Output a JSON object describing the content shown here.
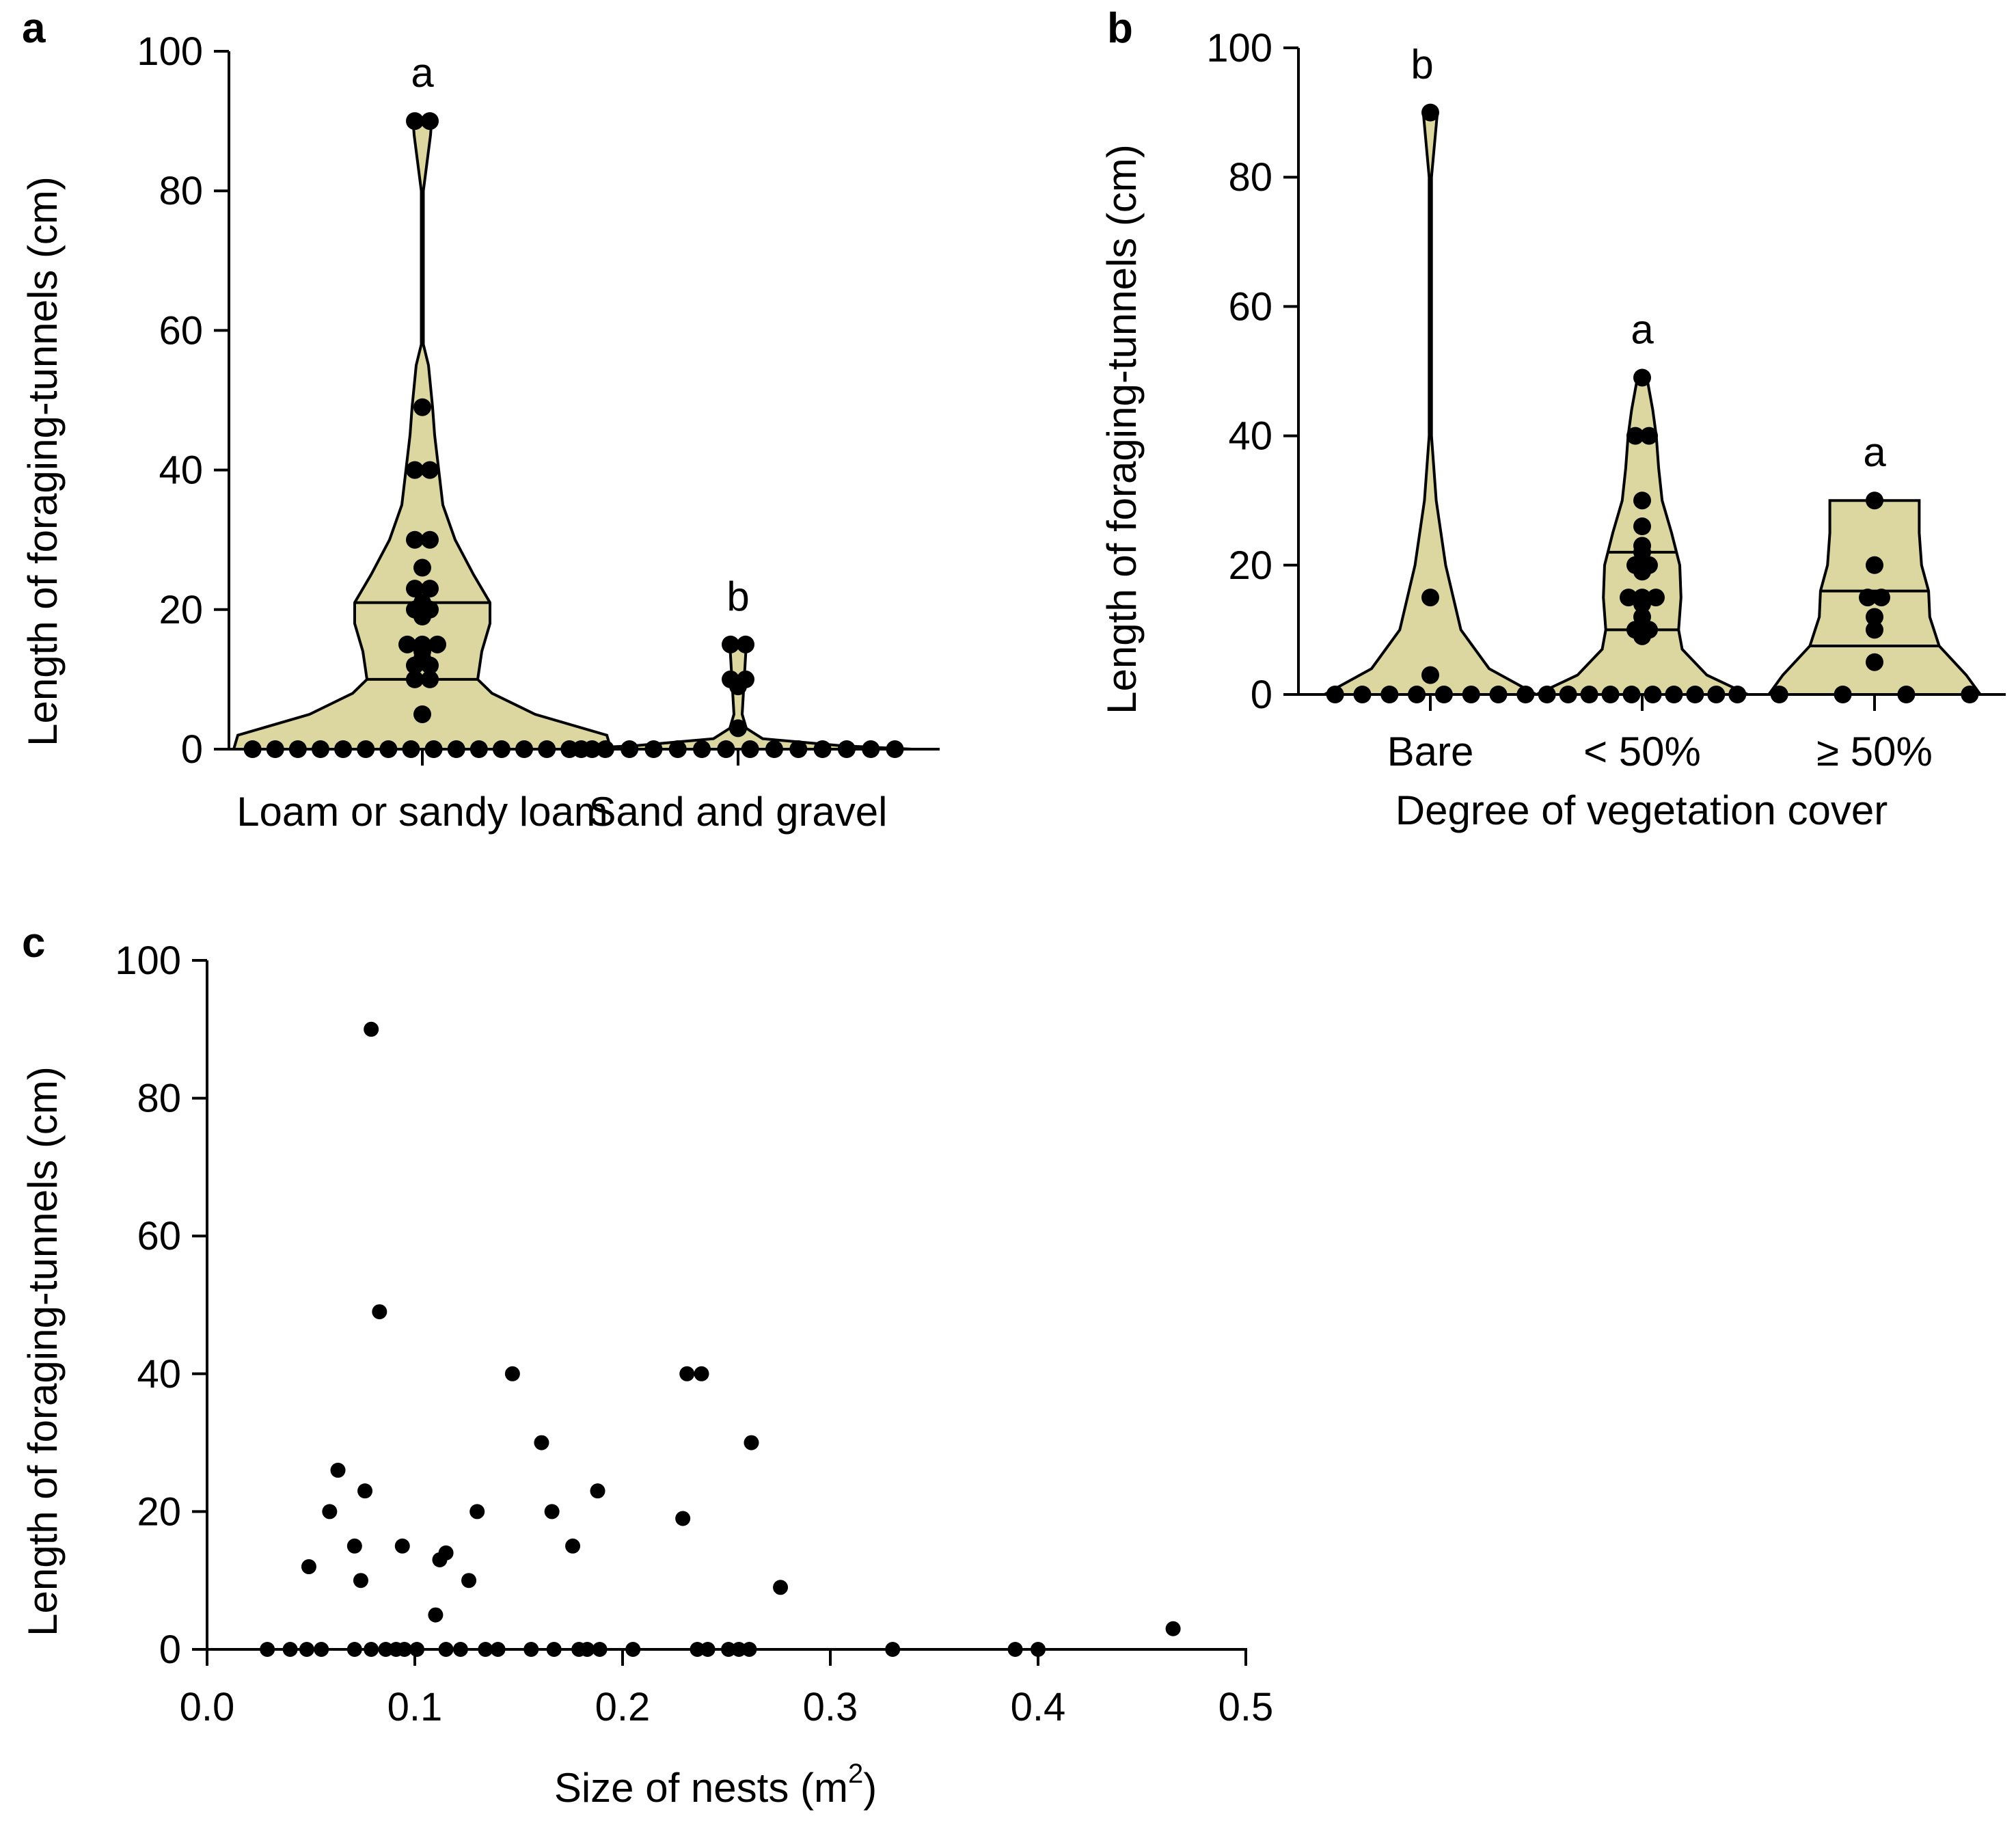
{
  "chart_data": [
    {
      "panel": "a",
      "type": "violin",
      "ylabel": "Length of foraging-tunnels (cm)",
      "xlabel": "",
      "ylim": [
        0,
        100
      ],
      "yticks": [
        "0",
        "20",
        "40",
        "60",
        "80",
        "100"
      ],
      "fill_color": "#DCD7A0",
      "groups": [
        {
          "category": "Loam or sandy loam",
          "sig": "a",
          "median": 0.5,
          "q1": 0,
          "q3": 21,
          "q_lines": [
            10,
            21
          ],
          "values": [
            90,
            90,
            49,
            40,
            40,
            30,
            30,
            26,
            23,
            23,
            21,
            20,
            20,
            19,
            15,
            15,
            15,
            14,
            13,
            12,
            12,
            10,
            10,
            5,
            0,
            0,
            0,
            0,
            0,
            0,
            0,
            0,
            0,
            0,
            0,
            0,
            0,
            0,
            0,
            0
          ],
          "violin_shape": [
            [
              0,
              0.92
            ],
            [
              2,
              0.9
            ],
            [
              5,
              0.55
            ],
            [
              8,
              0.34
            ],
            [
              10,
              0.27
            ],
            [
              14,
              0.29
            ],
            [
              18,
              0.33
            ],
            [
              21,
              0.33
            ],
            [
              25,
              0.25
            ],
            [
              30,
              0.16
            ],
            [
              35,
              0.1
            ],
            [
              40,
              0.08
            ],
            [
              45,
              0.06
            ],
            [
              49,
              0.05
            ],
            [
              55,
              0.03
            ],
            [
              58,
              0.005
            ],
            [
              80,
              0.005
            ],
            [
              88,
              0.04
            ],
            [
              90,
              0.045
            ]
          ]
        },
        {
          "category": "Sand and gravel",
          "sig": "b",
          "median": 0,
          "q1": 0,
          "q3": 3,
          "q_lines": [],
          "values": [
            15,
            15,
            10,
            10,
            9,
            3,
            0,
            0,
            0,
            0,
            0,
            0,
            0,
            0,
            0,
            0,
            0,
            0,
            0,
            0
          ],
          "violin_shape": [
            [
              0,
              0.85
            ],
            [
              0.5,
              0.5
            ],
            [
              1.5,
              0.12
            ],
            [
              3,
              0.04
            ],
            [
              5,
              0.02
            ],
            [
              10,
              0.03
            ],
            [
              15,
              0.04
            ]
          ]
        }
      ]
    },
    {
      "panel": "b",
      "type": "violin",
      "ylabel": "Length of foraging-tunnels (cm)",
      "xlabel": "Degree of vegetation cover",
      "ylim": [
        0,
        100
      ],
      "yticks": [
        "0",
        "20",
        "40",
        "60",
        "80",
        "100"
      ],
      "fill_color": "#DCD7A0",
      "groups": [
        {
          "category": "Bare",
          "sig": "b",
          "median": 0,
          "q1": 0,
          "q3": 0,
          "q_lines": [],
          "values": [
            90,
            15,
            3,
            0,
            0,
            0,
            0,
            0,
            0,
            0,
            0
          ],
          "violin_shape": [
            [
              0,
              0.9
            ],
            [
              4,
              0.5
            ],
            [
              10,
              0.26
            ],
            [
              20,
              0.13
            ],
            [
              30,
              0.05
            ],
            [
              40,
              0.01
            ],
            [
              80,
              0.01
            ],
            [
              88,
              0.05
            ],
            [
              90,
              0.06
            ]
          ]
        },
        {
          "category": "< 50%",
          "sig": "a",
          "median": 0.5,
          "q1": 0,
          "q3": 22,
          "q_lines": [
            10,
            22
          ],
          "values": [
            49,
            40,
            40,
            30,
            26,
            23,
            22,
            20,
            20,
            19,
            15,
            15,
            15,
            14,
            12,
            10,
            10,
            9,
            0,
            0,
            0,
            0,
            0,
            0,
            0,
            0,
            0,
            0
          ],
          "violin_shape": [
            [
              0,
              0.9
            ],
            [
              3,
              0.55
            ],
            [
              7,
              0.34
            ],
            [
              10,
              0.31
            ],
            [
              15,
              0.33
            ],
            [
              20,
              0.32
            ],
            [
              25,
              0.25
            ],
            [
              30,
              0.17
            ],
            [
              35,
              0.14
            ],
            [
              40,
              0.12
            ],
            [
              44,
              0.09
            ],
            [
              48,
              0.05
            ],
            [
              49,
              0.04
            ]
          ]
        },
        {
          "category": "≥ 50%",
          "sig": "a",
          "median": 7.5,
          "q1": 0,
          "q3": 16,
          "q_lines": [
            7.5,
            16
          ],
          "values": [
            30,
            20,
            15,
            15,
            12,
            10,
            5,
            0,
            0,
            0,
            0
          ],
          "violin_shape": [
            [
              0,
              0.9
            ],
            [
              3,
              0.78
            ],
            [
              7.5,
              0.55
            ],
            [
              12,
              0.47
            ],
            [
              16,
              0.46
            ],
            [
              20,
              0.4
            ],
            [
              25,
              0.38
            ],
            [
              30,
              0.38
            ]
          ]
        }
      ]
    },
    {
      "panel": "c",
      "type": "scatter",
      "xlabel_main": "Size of nests (m",
      "xlabel_sup": "2",
      "xlabel_end": ")",
      "ylabel": "Length of foraging-tunnels (cm)",
      "xlim": [
        0,
        0.5
      ],
      "ylim": [
        0,
        100
      ],
      "xticks": [
        "0.0",
        "0.1",
        "0.2",
        "0.3",
        "0.4",
        "0.5"
      ],
      "yticks": [
        "0",
        "20",
        "40",
        "60",
        "80",
        "100"
      ],
      "points": [
        [
          0.079,
          90
        ],
        [
          0.083,
          49
        ],
        [
          0.147,
          40
        ],
        [
          0.231,
          40
        ],
        [
          0.238,
          40
        ],
        [
          0.161,
          30
        ],
        [
          0.262,
          30
        ],
        [
          0.063,
          26
        ],
        [
          0.076,
          23
        ],
        [
          0.188,
          23
        ],
        [
          0.059,
          20
        ],
        [
          0.13,
          20
        ],
        [
          0.166,
          20
        ],
        [
          0.229,
          19
        ],
        [
          0.071,
          15
        ],
        [
          0.094,
          15
        ],
        [
          0.176,
          15
        ],
        [
          0.115,
          14
        ],
        [
          0.112,
          13
        ],
        [
          0.049,
          12
        ],
        [
          0.074,
          10
        ],
        [
          0.126,
          10
        ],
        [
          0.276,
          9
        ],
        [
          0.11,
          5
        ],
        [
          0.465,
          3
        ],
        [
          0.029,
          0
        ],
        [
          0.04,
          0
        ],
        [
          0.048,
          0
        ],
        [
          0.055,
          0
        ],
        [
          0.071,
          0
        ],
        [
          0.079,
          0
        ],
        [
          0.086,
          0
        ],
        [
          0.091,
          0
        ],
        [
          0.095,
          0
        ],
        [
          0.101,
          0
        ],
        [
          0.115,
          0
        ],
        [
          0.122,
          0
        ],
        [
          0.134,
          0
        ],
        [
          0.14,
          0
        ],
        [
          0.156,
          0
        ],
        [
          0.167,
          0
        ],
        [
          0.179,
          0
        ],
        [
          0.183,
          0
        ],
        [
          0.189,
          0
        ],
        [
          0.205,
          0
        ],
        [
          0.236,
          0
        ],
        [
          0.241,
          0
        ],
        [
          0.251,
          0
        ],
        [
          0.256,
          0
        ],
        [
          0.261,
          0
        ],
        [
          0.33,
          0
        ],
        [
          0.389,
          0
        ],
        [
          0.4,
          0
        ]
      ]
    }
  ]
}
